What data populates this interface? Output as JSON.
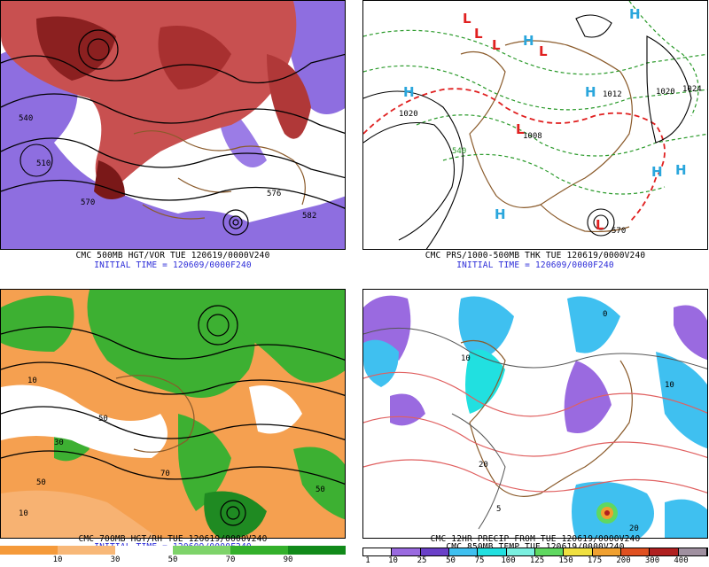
{
  "panels": {
    "p1": {
      "caption_line1": "CMC 500MB HGT/VOR TUE 120619/0000V240",
      "caption_line2": "INITIAL TIME = 120609/0000F240",
      "contour_labels": [
        "510",
        "540",
        "570",
        "576",
        "582"
      ]
    },
    "p2": {
      "caption_line1": "CMC PRS/1000-500MB THK TUE 120619/0000V240",
      "caption_line2": "INITIAL TIME = 120609/0000F240",
      "highs": [
        "H",
        "H",
        "H",
        "H",
        "H",
        "H",
        "H"
      ],
      "lows": [
        "L",
        "L",
        "L",
        "L",
        "L",
        "L"
      ],
      "contour_labels": [
        "1020",
        "1012",
        "1008",
        "1020",
        "1024",
        "540",
        "570"
      ]
    },
    "p3": {
      "caption_line1": "CMC 700MB HGT/RH TUE 120619/0000V240",
      "caption_line2": "INITIAL TIME = 120609/0000F240",
      "contour_labels": [
        "10",
        "50",
        "30",
        "70",
        "10",
        "50",
        "50"
      ],
      "scale_labels": [
        "10",
        "30",
        "50",
        "70",
        "90"
      ],
      "scale_colors": [
        "#f59a3a",
        "#f8b878",
        "#ffffff",
        "#7ed36a",
        "#33b02b",
        "#118a1a"
      ]
    },
    "p4": {
      "caption_line1": "CMC 12HR PRECIP FROM TUE 120619/0000V240",
      "caption_line2": "CMC 850MB TEMP TUE 120619/0000V240",
      "contour_labels": [
        "10",
        "20",
        "0",
        "10",
        "20",
        "5"
      ],
      "scale_labels": [
        "1",
        "10",
        "25",
        "50",
        "75",
        "100",
        "125",
        "150",
        "175",
        "200",
        "300",
        "400"
      ],
      "scale_colors": [
        "#ffffff",
        "#9a6ae0",
        "#6a40c8",
        "#3fc0f0",
        "#21e0e0",
        "#7af0e0",
        "#5fd860",
        "#f0e040",
        "#f0a030",
        "#e05020",
        "#b02020",
        "#a090a0"
      ]
    }
  }
}
